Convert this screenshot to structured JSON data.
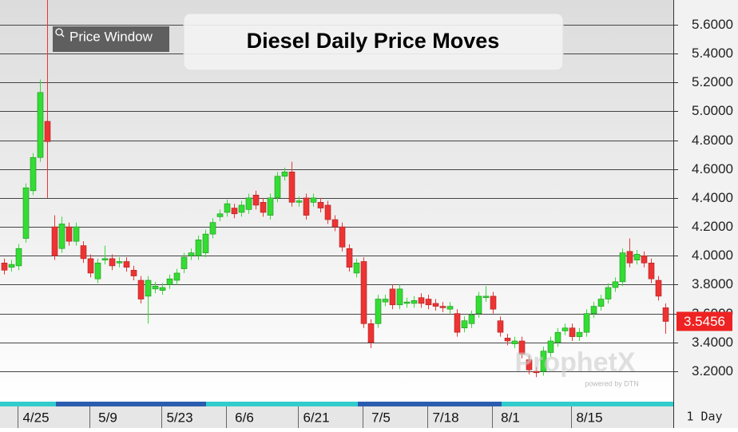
{
  "chart_data": {
    "type": "candlestick",
    "title": "Diesel Daily Price Moves",
    "button": "Price Window",
    "watermark": "ProphetX",
    "watermark_sub": "powered by DTN",
    "interval": "1 Day",
    "categories": [
      null,
      null,
      null,
      null,
      "4/25",
      null,
      null,
      null,
      null,
      null,
      null,
      null,
      null,
      null,
      "5/9",
      null,
      null,
      null,
      null,
      null,
      null,
      null,
      null,
      null,
      "5/23",
      null,
      null,
      null,
      null,
      null,
      null,
      null,
      null,
      "6/6",
      null,
      null,
      null,
      null,
      null,
      null,
      null,
      null,
      null,
      "6/21",
      null,
      null,
      null,
      null,
      null,
      null,
      null,
      null,
      "7/5",
      null,
      null,
      null,
      null,
      null,
      null,
      null,
      null,
      "7/18",
      null,
      null,
      null,
      null,
      null,
      null,
      null,
      null,
      "8/1",
      null,
      null,
      null,
      null,
      null,
      null,
      null,
      null,
      null,
      null,
      "8/15",
      null,
      null,
      null,
      null,
      null,
      null,
      null,
      null,
      null,
      null,
      null
    ],
    "open": [
      3.95,
      3.92,
      3.93,
      4.12,
      4.45,
      4.68,
      4.93,
      4.2,
      4.05,
      4.2,
      4.1,
      4.07,
      3.98,
      3.84,
      3.97,
      3.98,
      3.95,
      3.96,
      3.9,
      3.83,
      3.72,
      3.77,
      3.76,
      3.8,
      3.83,
      3.91,
      4.0,
      4.0,
      4.02,
      4.15,
      4.27,
      4.3,
      4.33,
      4.3,
      4.32,
      4.42,
      4.37,
      4.28,
      4.4,
      4.55,
      4.58,
      4.37,
      4.4,
      4.37,
      4.37,
      4.35,
      4.25,
      4.2,
      4.05,
      3.88,
      3.96,
      3.53,
      3.53,
      3.68,
      3.77,
      3.66,
      3.67,
      3.67,
      3.71,
      3.7,
      3.67,
      3.65,
      3.63,
      3.6,
      3.5,
      3.53,
      3.6,
      3.71,
      3.72,
      3.55,
      3.43,
      3.39,
      3.41,
      3.28,
      3.2,
      3.2,
      3.33,
      3.4,
      3.48,
      3.5,
      3.44,
      3.47,
      3.6,
      3.65,
      3.7,
      3.78,
      3.82,
      4.03,
      3.97,
      4.0,
      3.95,
      3.83,
      3.64
    ],
    "high": [
      3.98,
      3.97,
      4.08,
      4.5,
      4.71,
      5.22,
      5.77,
      4.28,
      4.27,
      4.23,
      4.23,
      4.1,
      4.01,
      3.98,
      4.07,
      4.01,
      3.99,
      3.99,
      3.93,
      3.86,
      3.86,
      3.82,
      3.81,
      3.87,
      3.91,
      4.02,
      4.05,
      4.14,
      4.18,
      4.26,
      4.32,
      4.39,
      4.36,
      4.38,
      4.43,
      4.45,
      4.4,
      4.43,
      4.58,
      4.61,
      4.65,
      4.41,
      4.43,
      4.43,
      4.4,
      4.38,
      4.28,
      4.23,
      4.08,
      3.98,
      3.99,
      3.56,
      3.73,
      3.73,
      3.8,
      3.8,
      3.71,
      3.72,
      3.74,
      3.73,
      3.7,
      3.68,
      3.68,
      3.63,
      3.58,
      3.62,
      3.75,
      3.79,
      3.75,
      3.58,
      3.46,
      3.44,
      3.44,
      3.31,
      3.23,
      3.37,
      3.44,
      3.5,
      3.53,
      3.53,
      3.5,
      3.63,
      3.68,
      3.73,
      3.81,
      3.85,
      4.05,
      4.12,
      4.04,
      4.03,
      3.98,
      3.86,
      3.67
    ],
    "low": [
      3.87,
      3.89,
      3.9,
      4.09,
      4.42,
      4.65,
      4.4,
      3.97,
      4.02,
      4.07,
      4.07,
      3.95,
      3.85,
      3.81,
      3.94,
      3.9,
      3.92,
      3.89,
      3.83,
      3.67,
      3.53,
      3.74,
      3.73,
      3.77,
      3.8,
      3.88,
      3.97,
      3.97,
      3.99,
      4.12,
      4.24,
      4.27,
      4.26,
      4.27,
      4.29,
      4.32,
      4.27,
      4.25,
      4.37,
      4.52,
      4.34,
      4.34,
      4.25,
      4.34,
      4.3,
      4.22,
      4.17,
      4.03,
      3.89,
      3.85,
      3.5,
      3.36,
      3.5,
      3.65,
      3.63,
      3.63,
      3.64,
      3.64,
      3.64,
      3.63,
      3.62,
      3.61,
      3.6,
      3.44,
      3.47,
      3.5,
      3.57,
      3.68,
      3.6,
      3.44,
      3.38,
      3.36,
      3.29,
      3.18,
      3.16,
      3.17,
      3.3,
      3.37,
      3.45,
      3.41,
      3.41,
      3.44,
      3.57,
      3.62,
      3.67,
      3.75,
      3.79,
      3.92,
      3.94,
      3.92,
      3.81,
      3.69,
      3.46
    ],
    "close": [
      3.9,
      3.94,
      4.05,
      4.47,
      4.68,
      5.13,
      4.79,
      4.0,
      4.22,
      4.1,
      4.2,
      3.98,
      3.88,
      3.95,
      3.98,
      3.93,
      3.96,
      3.92,
      3.86,
      3.7,
      3.83,
      3.79,
      3.78,
      3.84,
      3.88,
      3.99,
      4.02,
      4.11,
      4.15,
      4.23,
      4.29,
      4.36,
      4.29,
      4.35,
      4.4,
      4.35,
      4.3,
      4.4,
      4.55,
      4.58,
      4.37,
      4.38,
      4.28,
      4.4,
      4.33,
      4.25,
      4.2,
      4.06,
      3.92,
      3.95,
      3.53,
      3.4,
      3.7,
      3.7,
      3.66,
      3.77,
      3.68,
      3.69,
      3.67,
      3.66,
      3.65,
      3.64,
      3.65,
      3.47,
      3.55,
      3.59,
      3.72,
      3.72,
      3.63,
      3.47,
      3.41,
      3.41,
      3.32,
      3.21,
      3.19,
      3.34,
      3.41,
      3.47,
      3.5,
      3.44,
      3.47,
      3.6,
      3.65,
      3.7,
      3.78,
      3.82,
      4.02,
      3.95,
      4.01,
      3.95,
      3.84,
      3.72,
      3.5456
    ],
    "up_color": "#33dd33",
    "down_color": "#ee3333",
    "ylim": [
      2.99,
      5.77
    ],
    "yticks": [
      {
        "value": 3.2,
        "label": "3.2000"
      },
      {
        "value": 3.4,
        "label": "3.4000"
      },
      {
        "value": 3.6,
        "label": "3.6000"
      },
      {
        "value": 3.8,
        "label": "3.8000"
      },
      {
        "value": 4.0,
        "label": "4.0000"
      },
      {
        "value": 4.2,
        "label": "4.2000"
      },
      {
        "value": 4.4,
        "label": "4.4000"
      },
      {
        "value": 4.6,
        "label": "4.6000"
      },
      {
        "value": 4.8,
        "label": "4.8000"
      },
      {
        "value": 5.0,
        "label": "5.0000"
      },
      {
        "value": 5.2,
        "label": "5.2000"
      },
      {
        "value": 5.4,
        "label": "5.4000"
      },
      {
        "value": 5.6,
        "label": "5.6000"
      }
    ],
    "grid": true
  }
}
